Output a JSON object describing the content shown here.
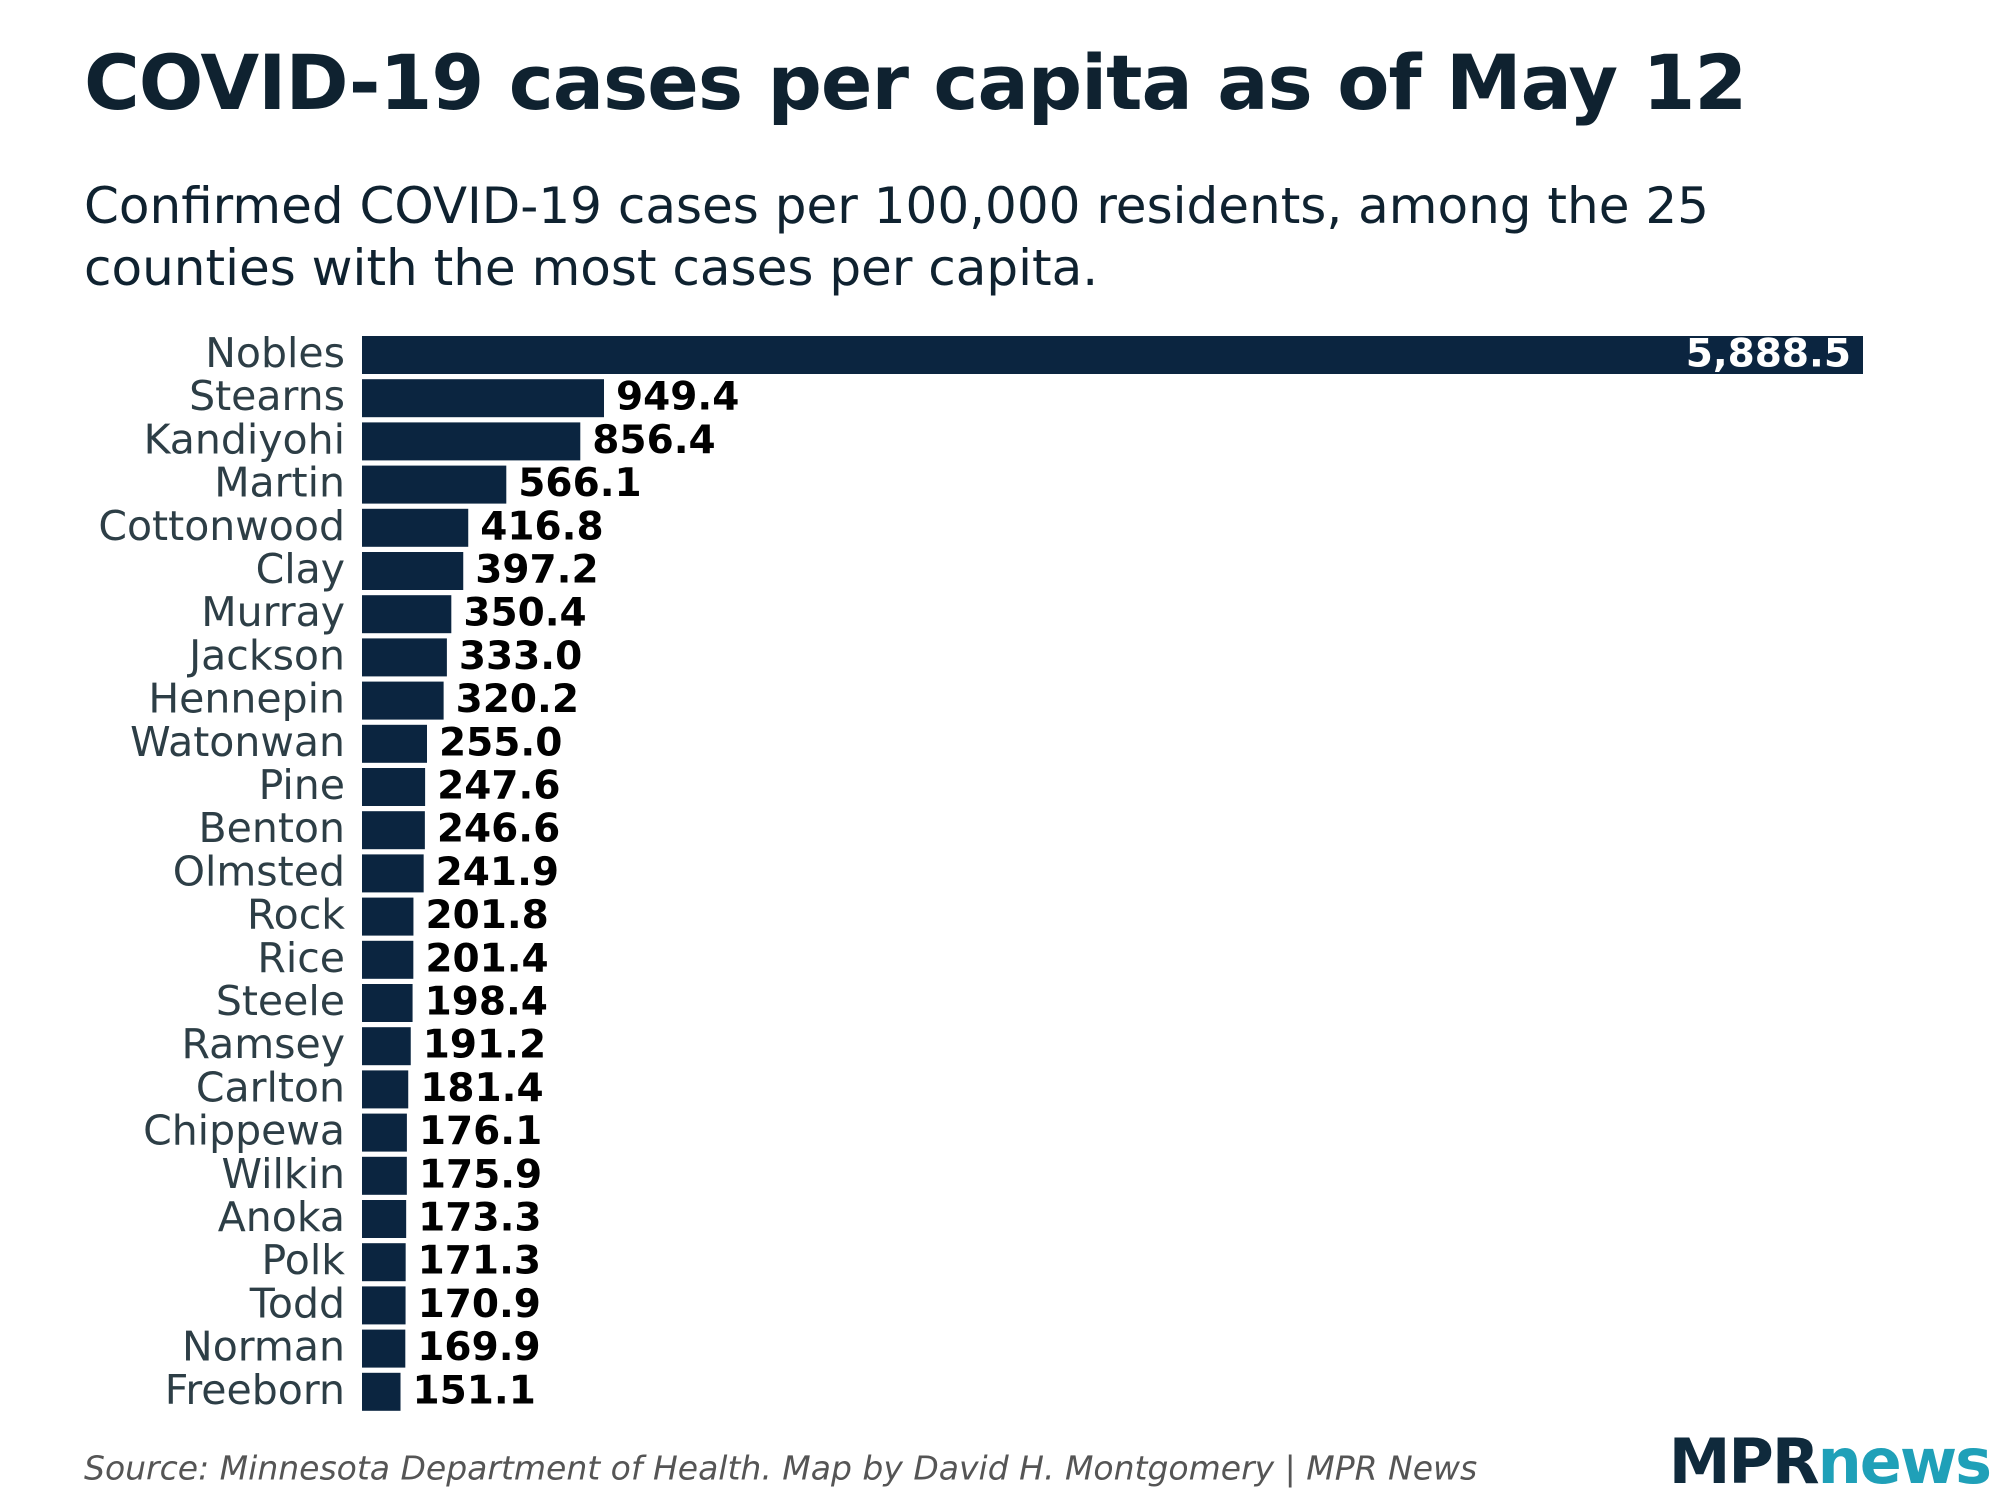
{
  "chart_data": {
    "type": "bar",
    "title": "COVID-19 cases per capita as of May 12",
    "subtitle": "Confirmed COVID-19 cases per 100,000 residents, among the 25 counties with the most cases per capita.",
    "orientation": "horizontal",
    "color": "#0b2540",
    "categories": [
      "Nobles",
      "Stearns",
      "Kandiyohi",
      "Martin",
      "Cottonwood",
      "Clay",
      "Murray",
      "Jackson",
      "Hennepin",
      "Watonwan",
      "Pine",
      "Benton",
      "Olmsted",
      "Rock",
      "Rice",
      "Steele",
      "Ramsey",
      "Carlton",
      "Chippewa",
      "Wilkin",
      "Anoka",
      "Polk",
      "Todd",
      "Norman",
      "Freeborn"
    ],
    "values": [
      5888.5,
      949.4,
      856.4,
      566.1,
      416.8,
      397.2,
      350.4,
      333.0,
      320.2,
      255.0,
      247.6,
      246.6,
      241.9,
      201.8,
      201.4,
      198.4,
      191.2,
      181.4,
      176.1,
      175.9,
      173.3,
      171.3,
      170.9,
      169.9,
      151.1
    ],
    "value_labels": [
      "5,888.5",
      "949.4",
      "856.4",
      "566.1",
      "416.8",
      "397.2",
      "350.4",
      "333.0",
      "320.2",
      "255.0",
      "247.6",
      "246.6",
      "241.9",
      "201.8",
      "201.4",
      "198.4",
      "191.2",
      "181.4",
      "176.1",
      "175.9",
      "173.3",
      "171.3",
      "170.9",
      "169.9",
      "151.1"
    ],
    "source": "Source: Minnesota Department of Health. Map by David H. Montgomery | MPR News",
    "logo": {
      "mpr": "MPR",
      "news": "news"
    }
  }
}
